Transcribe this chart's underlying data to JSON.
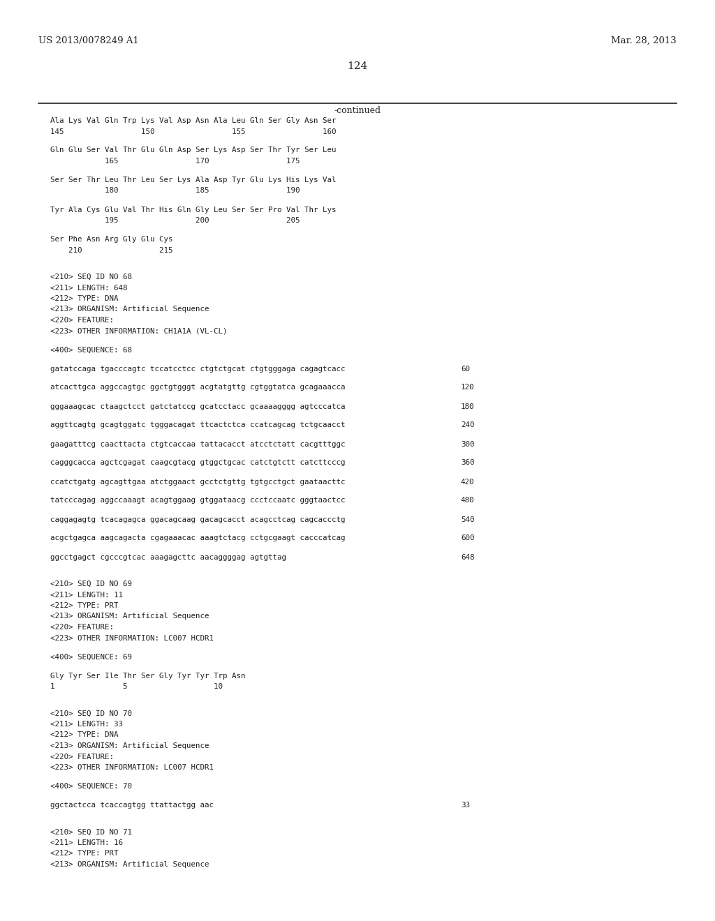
{
  "header_left": "US 2013/0078249 A1",
  "header_right": "Mar. 28, 2013",
  "page_number": "124",
  "continued_label": "-continued",
  "background_color": "#ffffff",
  "text_color": "#231f20",
  "mono_font_size": 7.8,
  "header_font_size": 9.5,
  "page_num_font_size": 11,
  "content_lines": [
    {
      "type": "seq_aa",
      "text": "Ala Lys Val Gln Trp Lys Val Asp Asn Ala Leu Gln Ser Gly Asn Ser"
    },
    {
      "type": "seq_num",
      "text": "145                 150                 155                 160"
    },
    {
      "type": "blank"
    },
    {
      "type": "seq_aa",
      "text": "Gln Glu Ser Val Thr Glu Gln Asp Ser Lys Asp Ser Thr Tyr Ser Leu"
    },
    {
      "type": "seq_num",
      "text": "            165                 170                 175"
    },
    {
      "type": "blank"
    },
    {
      "type": "seq_aa",
      "text": "Ser Ser Thr Leu Thr Leu Ser Lys Ala Asp Tyr Glu Lys His Lys Val"
    },
    {
      "type": "seq_num",
      "text": "            180                 185                 190"
    },
    {
      "type": "blank"
    },
    {
      "type": "seq_aa",
      "text": "Tyr Ala Cys Glu Val Thr His Gln Gly Leu Ser Ser Pro Val Thr Lys"
    },
    {
      "type": "seq_num",
      "text": "            195                 200                 205"
    },
    {
      "type": "blank"
    },
    {
      "type": "seq_aa",
      "text": "Ser Phe Asn Arg Gly Glu Cys"
    },
    {
      "type": "seq_num",
      "text": "    210                 215"
    },
    {
      "type": "blank"
    },
    {
      "type": "blank"
    },
    {
      "type": "meta",
      "text": "<210> SEQ ID NO 68"
    },
    {
      "type": "meta",
      "text": "<211> LENGTH: 648"
    },
    {
      "type": "meta",
      "text": "<212> TYPE: DNA"
    },
    {
      "type": "meta",
      "text": "<213> ORGANISM: Artificial Sequence"
    },
    {
      "type": "meta",
      "text": "<220> FEATURE:"
    },
    {
      "type": "meta",
      "text": "<223> OTHER INFORMATION: CH1A1A (VL-CL)"
    },
    {
      "type": "blank"
    },
    {
      "type": "meta",
      "text": "<400> SEQUENCE: 68"
    },
    {
      "type": "blank"
    },
    {
      "type": "dna",
      "text": "gatatccaga tgacccagtc tccatcctcc ctgtctgcat ctgtgggaga cagagtcacc",
      "num": "60"
    },
    {
      "type": "blank"
    },
    {
      "type": "dna",
      "text": "atcacttgca aggccagtgc ggctgtgggt acgtatgttg cgtggtatca gcagaaacca",
      "num": "120"
    },
    {
      "type": "blank"
    },
    {
      "type": "dna",
      "text": "gggaaagcac ctaagctcct gatctatccg gcatcctacc gcaaaagggg agtcccatca",
      "num": "180"
    },
    {
      "type": "blank"
    },
    {
      "type": "dna",
      "text": "aggttcagtg gcagtggatc tgggacagat ttcactctca ccatcagcag tctgcaacct",
      "num": "240"
    },
    {
      "type": "blank"
    },
    {
      "type": "dna",
      "text": "gaagatttcg caacttacta ctgtcaccaa tattacacct atcctctatt cacgtttggc",
      "num": "300"
    },
    {
      "type": "blank"
    },
    {
      "type": "dna",
      "text": "cagggcacca agctcgagat caagcgtacg gtggctgcac catctgtctt catcttcccg",
      "num": "360"
    },
    {
      "type": "blank"
    },
    {
      "type": "dna",
      "text": "ccatctgatg agcagttgaa atctggaact gcctctgttg tgtgcctgct gaataacttc",
      "num": "420"
    },
    {
      "type": "blank"
    },
    {
      "type": "dna",
      "text": "tatcccagag aggccaaagt acagtggaag gtggataacg ccctccaatc gggtaactcc",
      "num": "480"
    },
    {
      "type": "blank"
    },
    {
      "type": "dna",
      "text": "caggagagtg tcacagagca ggacagcaag gacagcacct acagcctcag cagcaccctg",
      "num": "540"
    },
    {
      "type": "blank"
    },
    {
      "type": "dna",
      "text": "acgctgagca aagcagacta cgagaaacac aaagtctacg cctgcgaagt cacccatcag",
      "num": "600"
    },
    {
      "type": "blank"
    },
    {
      "type": "dna",
      "text": "ggcctgagct cgcccgtcac aaagagcttc aacaggggag agtgttag",
      "num": "648"
    },
    {
      "type": "blank"
    },
    {
      "type": "blank"
    },
    {
      "type": "meta",
      "text": "<210> SEQ ID NO 69"
    },
    {
      "type": "meta",
      "text": "<211> LENGTH: 11"
    },
    {
      "type": "meta",
      "text": "<212> TYPE: PRT"
    },
    {
      "type": "meta",
      "text": "<213> ORGANISM: Artificial Sequence"
    },
    {
      "type": "meta",
      "text": "<220> FEATURE:"
    },
    {
      "type": "meta",
      "text": "<223> OTHER INFORMATION: LC007 HCDR1"
    },
    {
      "type": "blank"
    },
    {
      "type": "meta",
      "text": "<400> SEQUENCE: 69"
    },
    {
      "type": "blank"
    },
    {
      "type": "seq_aa",
      "text": "Gly Tyr Ser Ile Thr Ser Gly Tyr Tyr Trp Asn"
    },
    {
      "type": "seq_num",
      "text": "1               5                   10"
    },
    {
      "type": "blank"
    },
    {
      "type": "blank"
    },
    {
      "type": "meta",
      "text": "<210> SEQ ID NO 70"
    },
    {
      "type": "meta",
      "text": "<211> LENGTH: 33"
    },
    {
      "type": "meta",
      "text": "<212> TYPE: DNA"
    },
    {
      "type": "meta",
      "text": "<213> ORGANISM: Artificial Sequence"
    },
    {
      "type": "meta",
      "text": "<220> FEATURE:"
    },
    {
      "type": "meta",
      "text": "<223> OTHER INFORMATION: LC007 HCDR1"
    },
    {
      "type": "blank"
    },
    {
      "type": "meta",
      "text": "<400> SEQUENCE: 70"
    },
    {
      "type": "blank"
    },
    {
      "type": "dna",
      "text": "ggctactcca tcaccagtgg ttattactgg aac",
      "num": "33"
    },
    {
      "type": "blank"
    },
    {
      "type": "blank"
    },
    {
      "type": "meta",
      "text": "<210> SEQ ID NO 71"
    },
    {
      "type": "meta",
      "text": "<211> LENGTH: 16"
    },
    {
      "type": "meta",
      "text": "<212> TYPE: PRT"
    },
    {
      "type": "meta",
      "text": "<213> ORGANISM: Artificial Sequence"
    }
  ]
}
